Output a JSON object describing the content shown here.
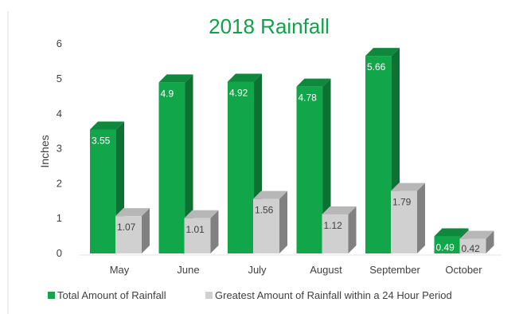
{
  "chart_data": {
    "type": "bar",
    "title": "2018 Rainfall",
    "ylabel": "Inches",
    "xlabel": "",
    "ylim": [
      0,
      6
    ],
    "yticks": [
      0,
      1,
      2,
      3,
      4,
      5,
      6
    ],
    "categories": [
      "May",
      "June",
      "July",
      "August",
      "September",
      "October"
    ],
    "series": [
      {
        "name": "Total Amount of Rainfall",
        "values": [
          3.55,
          4.9,
          4.92,
          4.78,
          5.66,
          0.49
        ],
        "color": "#12A64A"
      },
      {
        "name": "Greatest Amount of Rainfall within a 24 Hour Period",
        "values": [
          1.07,
          1.01,
          1.56,
          1.12,
          1.79,
          0.42
        ],
        "color": "#D0D0D0"
      }
    ],
    "legend": "bottom",
    "grid": false,
    "style": "3d-column"
  },
  "colors": {
    "title": "#13A04A",
    "text": "#404040",
    "axis_line": "#D9D9D9"
  }
}
